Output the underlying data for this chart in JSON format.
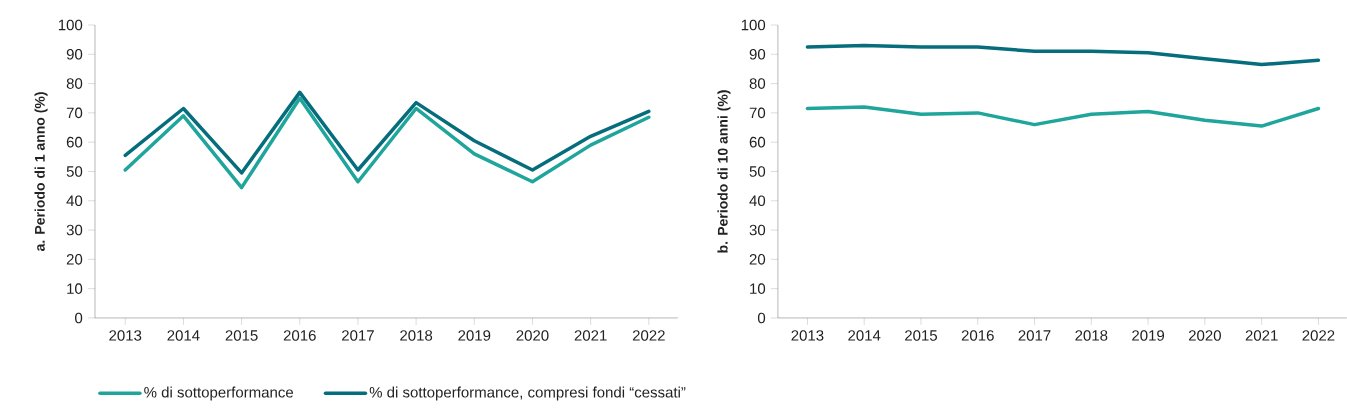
{
  "chart_data": [
    {
      "type": "line",
      "ylabel": "a. Periodo di 1 anno (%)",
      "categories": [
        "2013",
        "2014",
        "2015",
        "2016",
        "2017",
        "2018",
        "2019",
        "2020",
        "2021",
        "2022"
      ],
      "ylim": [
        0,
        100
      ],
      "yticks": [
        0,
        10,
        20,
        30,
        40,
        50,
        60,
        70,
        80,
        90,
        100
      ],
      "legend": "bottom",
      "series": [
        {
          "name": "% di sottoperformance",
          "color": "#1fa59c",
          "values": [
            50.5,
            69,
            44.5,
            75,
            46.5,
            71.5,
            56,
            46.5,
            59,
            68.5
          ]
        },
        {
          "name": "% di sottoperformance, compresi fondi “cessati”",
          "color": "#056d7c",
          "values": [
            55.5,
            71.5,
            49.5,
            77,
            50.5,
            73.5,
            60.5,
            50.5,
            62,
            70.5
          ]
        }
      ]
    },
    {
      "type": "line",
      "ylabel": "b. Periodo di 10 anni (%)",
      "categories": [
        "2013",
        "2014",
        "2015",
        "2016",
        "2017",
        "2018",
        "2019",
        "2020",
        "2021",
        "2022"
      ],
      "ylim": [
        0,
        100
      ],
      "yticks": [
        0,
        10,
        20,
        30,
        40,
        50,
        60,
        70,
        80,
        90,
        100
      ],
      "series": [
        {
          "color": "#1fa59c",
          "values": [
            71.5,
            72,
            69.5,
            70,
            66,
            69.5,
            70.5,
            67.5,
            65.5,
            71.5
          ]
        },
        {
          "color": "#056d7c",
          "values": [
            92.5,
            93,
            92.5,
            92.5,
            91,
            91,
            90.5,
            88.5,
            86.5,
            88
          ]
        }
      ]
    }
  ]
}
